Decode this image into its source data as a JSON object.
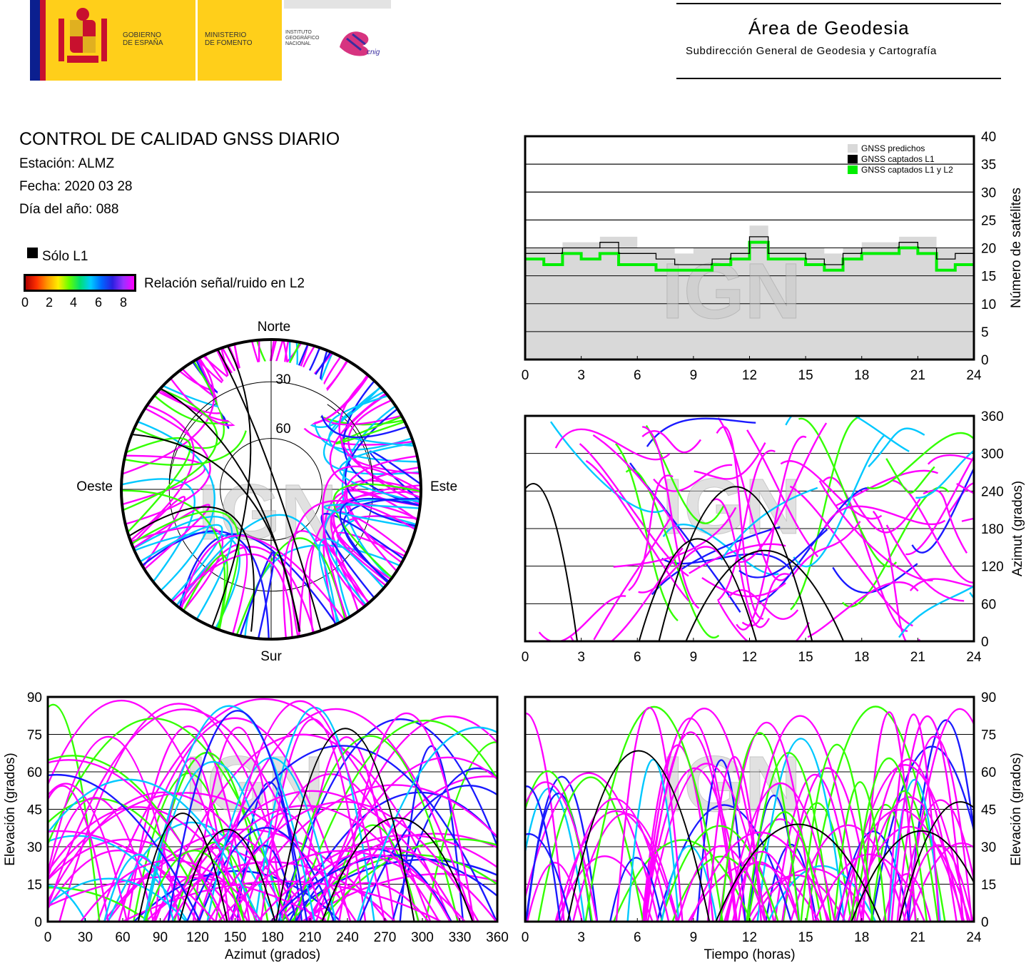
{
  "logos": {
    "gobierno": "GOBIERNO\nDE ESPAÑA",
    "ministerio": "MINISTERIO\nDE FOMENTO",
    "instituto": "INSTITUTO\nGEOGRÁFICO\nNACIONAL",
    "cnig": "cnig"
  },
  "header": {
    "title": "Área de Geodesia",
    "subtitle": "Subdirección General de Geodesia y Cartografía"
  },
  "report": {
    "title": "CONTROL DE CALIDAD GNSS DIARIO",
    "station": "Estación: ALMZ",
    "date": "Fecha: 2020 03 28",
    "doy": "Día del año: 088"
  },
  "legend": {
    "l1_only": "Sólo L1",
    "snr_label": "Relación señal/ruido en L2",
    "snr_ticks": [
      "0",
      "2",
      "4",
      "6",
      "8"
    ]
  },
  "watermark": "IGN",
  "colors": {
    "magenta": "#ff00ff",
    "blue": "#1a1aff",
    "cyan": "#00c8ff",
    "green": "#33ff00",
    "black": "#000000",
    "grey_fill": "#d9d9d9",
    "green_series": "#00ee00"
  },
  "chart_data": [
    {
      "type": "line",
      "name": "satellite-count",
      "x_ticks": [
        "0",
        "3",
        "6",
        "9",
        "12",
        "15",
        "18",
        "21",
        "24"
      ],
      "y_ticks": [
        "0",
        "5",
        "10",
        "15",
        "20",
        "25",
        "30",
        "35",
        "40"
      ],
      "xlim": [
        0,
        24
      ],
      "ylim": [
        0,
        40
      ],
      "ylabel": "Número de satélites",
      "grid": true,
      "legend_position": "top-right",
      "series": [
        {
          "name": "GNSS predichos",
          "x": [
            0,
            1,
            2,
            3,
            4,
            5,
            6,
            7,
            8,
            9,
            10,
            11,
            12,
            13,
            14,
            15,
            16,
            17,
            18,
            19,
            20,
            21,
            22,
            23,
            24
          ],
          "values": [
            20,
            20,
            21,
            21,
            22,
            22,
            20,
            20,
            19,
            20,
            20,
            20,
            24,
            20,
            20,
            20,
            19,
            20,
            21,
            21,
            22,
            22,
            20,
            20,
            20
          ]
        },
        {
          "name": "GNSS captados L1",
          "x": [
            0,
            1,
            2,
            3,
            4,
            5,
            6,
            7,
            8,
            9,
            10,
            11,
            12,
            13,
            14,
            15,
            16,
            17,
            18,
            19,
            20,
            21,
            22,
            23,
            24
          ],
          "values": [
            19,
            19,
            20,
            20,
            21,
            19,
            19,
            18,
            17,
            17,
            18,
            19,
            22,
            19,
            19,
            18,
            17,
            19,
            20,
            20,
            21,
            20,
            18,
            19,
            19
          ]
        },
        {
          "name": "GNSS captados L1 y L2",
          "x": [
            0,
            1,
            2,
            3,
            4,
            5,
            6,
            7,
            8,
            9,
            10,
            11,
            12,
            13,
            14,
            15,
            16,
            17,
            18,
            19,
            20,
            21,
            22,
            23,
            24
          ],
          "values": [
            18,
            17,
            19,
            18,
            19,
            17,
            17,
            16,
            16,
            16,
            17,
            18,
            21,
            18,
            18,
            17,
            16,
            18,
            19,
            19,
            20,
            19,
            16,
            17,
            17
          ]
        }
      ]
    },
    {
      "type": "scatter",
      "name": "azimuth-vs-time",
      "x_ticks": [
        "0",
        "3",
        "6",
        "9",
        "12",
        "15",
        "18",
        "21",
        "24"
      ],
      "y_ticks": [
        "0",
        "60",
        "120",
        "180",
        "240",
        "300",
        "360"
      ],
      "xlim": [
        0,
        24
      ],
      "ylim": [
        0,
        360
      ],
      "ylabel": "Azimut (grados)",
      "grid": true
    },
    {
      "type": "scatter",
      "name": "elevation-vs-azimuth",
      "x_ticks": [
        "0",
        "30",
        "60",
        "90",
        "120",
        "150",
        "180",
        "210",
        "240",
        "270",
        "300",
        "330",
        "360"
      ],
      "y_ticks": [
        "0",
        "15",
        "30",
        "45",
        "60",
        "75",
        "90"
      ],
      "xlim": [
        0,
        360
      ],
      "ylim": [
        0,
        90
      ],
      "xlabel": "Azimut (grados)",
      "ylabel": "Elevación (grados)",
      "grid": true
    },
    {
      "type": "scatter",
      "name": "elevation-vs-time",
      "x_ticks": [
        "0",
        "3",
        "6",
        "9",
        "12",
        "15",
        "18",
        "21",
        "24"
      ],
      "y_ticks": [
        "0",
        "15",
        "30",
        "45",
        "60",
        "75",
        "90"
      ],
      "xlim": [
        0,
        24
      ],
      "ylim": [
        0,
        90
      ],
      "xlabel": "Tiempo (horas)",
      "ylabel": "Elevación (grados)",
      "grid": true
    },
    {
      "type": "scatter",
      "name": "skyplot",
      "labels": {
        "north": "Norte",
        "south": "Sur",
        "west": "Oeste",
        "east": "Este"
      },
      "ring_labels": [
        "30",
        "60"
      ]
    }
  ]
}
